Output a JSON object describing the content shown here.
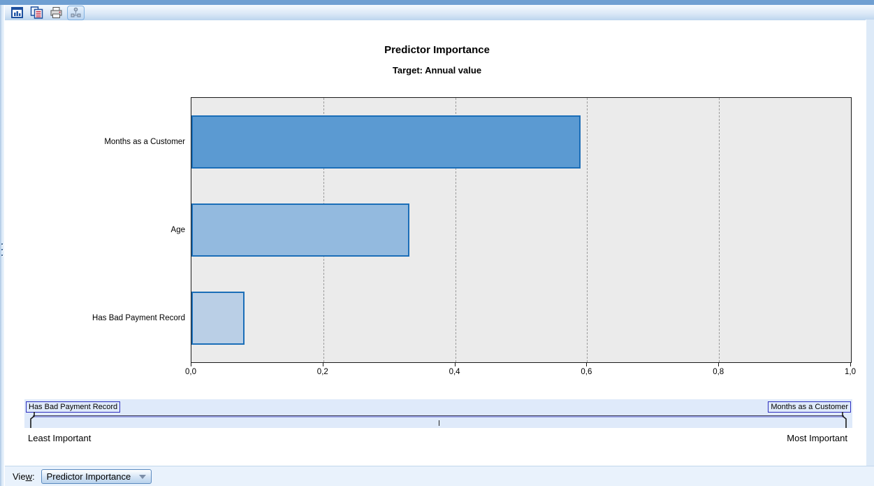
{
  "toolbar": {
    "icons": [
      {
        "name": "chart-thumbnail-icon",
        "selected": false
      },
      {
        "name": "copy-table-icon",
        "selected": false
      },
      {
        "name": "print-icon",
        "selected": false
      },
      {
        "name": "stream-graph-icon",
        "selected": true
      }
    ]
  },
  "chart_data": {
    "type": "bar",
    "orientation": "horizontal",
    "title": "Predictor Importance",
    "subtitle": "Target: Annual value",
    "categories": [
      "Months as a Customer",
      "Age",
      "Has Bad Payment Record"
    ],
    "values": [
      0.59,
      0.33,
      0.08
    ],
    "xlabel": "",
    "ylabel": "",
    "xlim": [
      0,
      1
    ],
    "x_tick_values": [
      0,
      0.2,
      0.4,
      0.6,
      0.8,
      1
    ],
    "x_tick_labels": [
      "0,0",
      "0,2",
      "0,4",
      "0,6",
      "0,8",
      "1,0"
    ],
    "grid": true,
    "legend_position": "none",
    "plot_background": "#ebebeb",
    "bar_colors": [
      "#5b9ad2",
      "#93badf",
      "#bacfe6"
    ],
    "bar_border_color": "#1b6eb8"
  },
  "slider": {
    "left_flag": "Has Bad Payment Record",
    "right_flag": "Months as a Customer",
    "left_caption": "Least Important",
    "right_caption": "Most Important"
  },
  "footer": {
    "view_label_pre": "Vie",
    "view_label_mnemonic": "w",
    "view_label_post": ":",
    "view_value": "Predictor Importance"
  }
}
